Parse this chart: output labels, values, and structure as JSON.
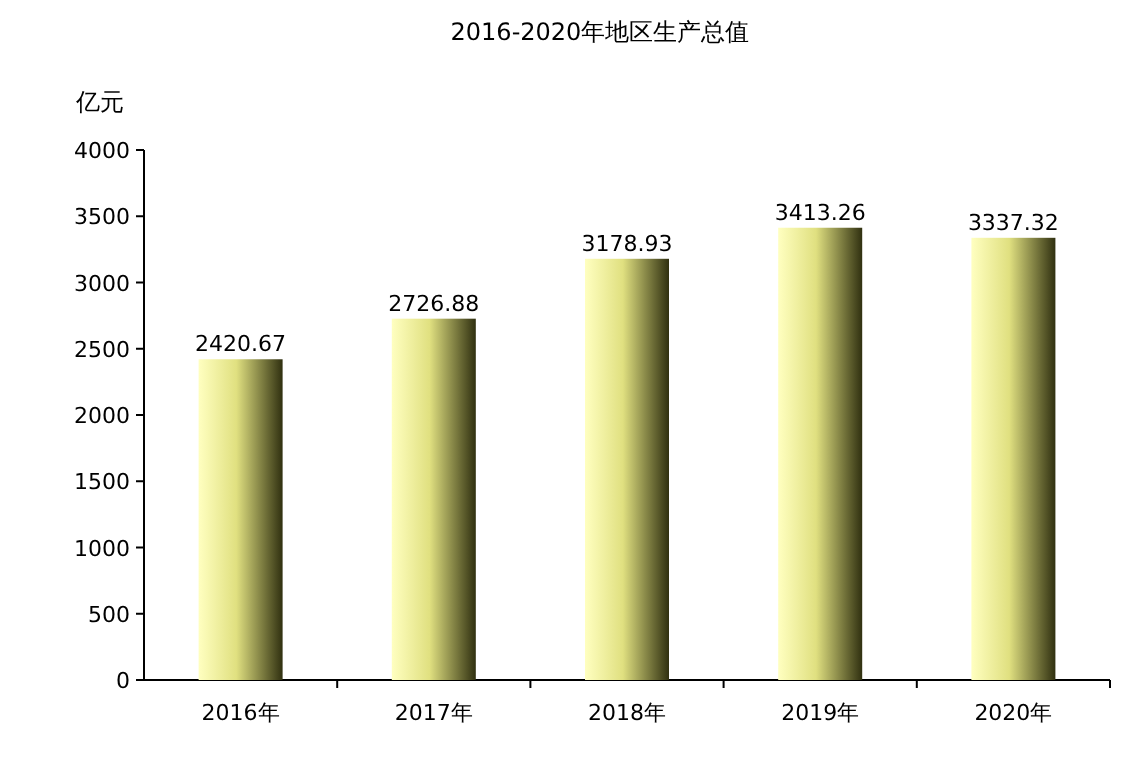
{
  "chart_data": {
    "type": "bar",
    "title": "2016-2020年地区生产总值",
    "ylabel": "亿元",
    "categories": [
      "2016年",
      "2017年",
      "2018年",
      "2019年",
      "2020年"
    ],
    "values": [
      2420.67,
      2726.88,
      3178.93,
      3413.26,
      3337.32
    ],
    "color": "#e0e080",
    "ylim": [
      0,
      4000
    ],
    "yticks": [
      0,
      500,
      1000,
      1500,
      2000,
      2500,
      3000,
      3500,
      4000
    ],
    "data_labels": true
  }
}
